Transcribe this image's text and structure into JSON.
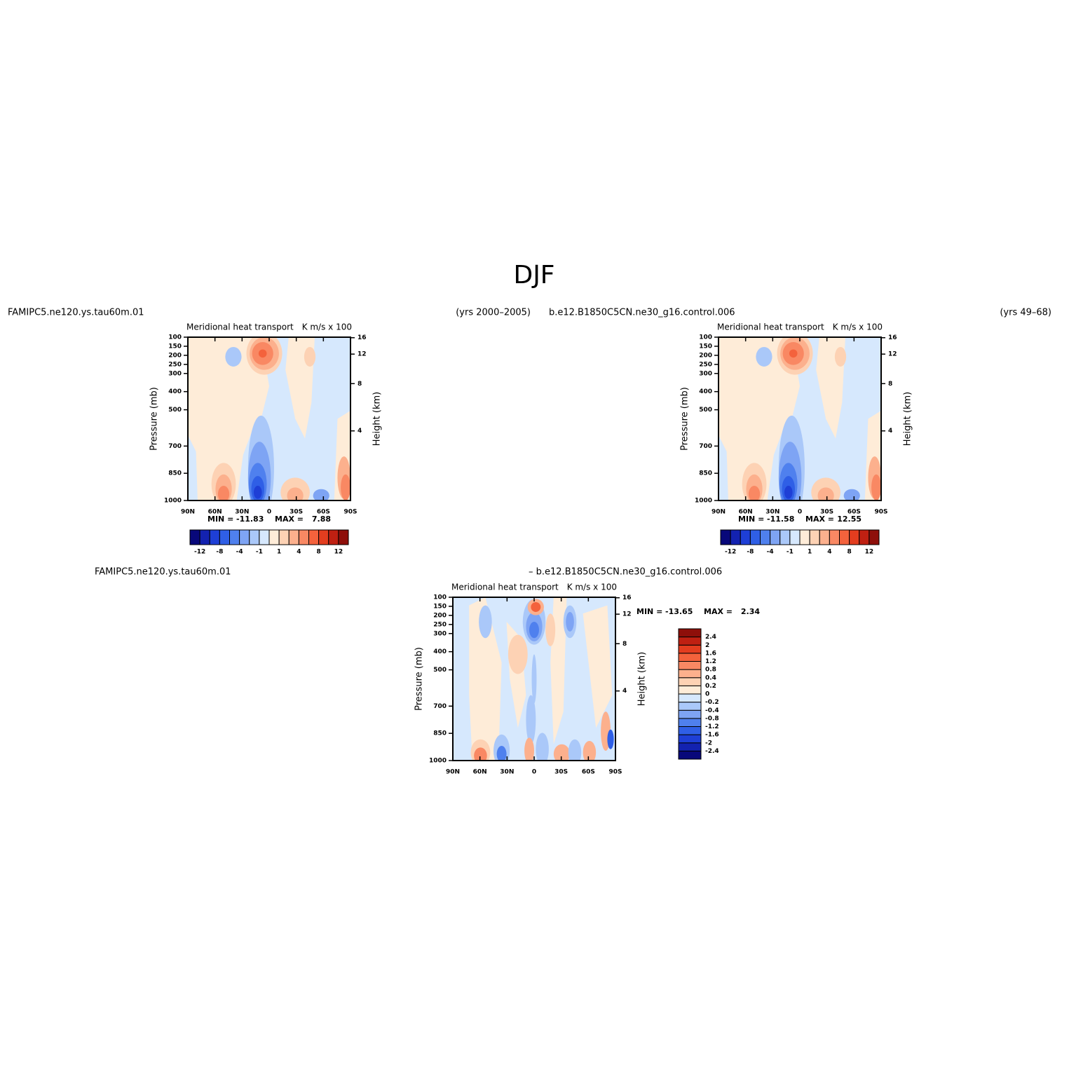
{
  "figure_title": "DJF",
  "chart_data": [
    {
      "type": "contour",
      "left_label": "FAMIPC5.ne120.ys.tau60m.01",
      "right_label": "(yrs 2000–2005)",
      "title": "Meridional heat transport",
      "units": "K m/s x 100",
      "categories": [
        "90N",
        "60N",
        "30N",
        "0",
        "30S",
        "60S",
        "90S"
      ],
      "ylim": [
        1000,
        100
      ],
      "yticks": [
        100,
        150,
        200,
        250,
        300,
        400,
        500,
        700,
        850,
        1000
      ],
      "y2ticks": [
        16,
        12,
        8,
        4
      ],
      "ylabel": "Pressure (mb)",
      "y2label": "Height (km)",
      "min_label": "MIN =",
      "min": -11.83,
      "max_label": "MAX =",
      "max": 7.88,
      "colorbar": {
        "orientation": "horizontal",
        "colors": [
          "#08087a",
          "#1322b0",
          "#1e3fd6",
          "#2f5fe6",
          "#4f80ee",
          "#7ea4f4",
          "#aac8f9",
          "#d6e8fd",
          "#feecd8",
          "#fdd2b4",
          "#fcb08d",
          "#f98863",
          "#f4623c",
          "#e33d1f",
          "#bf2012",
          "#8e0f0a"
        ],
        "ticks": [
          -12,
          -8,
          -4,
          -1,
          1,
          4,
          8,
          12
        ]
      }
    },
    {
      "type": "contour",
      "left_label": "b.e12.B1850C5CN.ne30_g16.control.006",
      "right_label": "(yrs 49–68)",
      "title": "Meridional heat transport",
      "units": "K m/s x 100",
      "categories": [
        "90N",
        "60N",
        "30N",
        "0",
        "30S",
        "60S",
        "90S"
      ],
      "ylim": [
        1000,
        100
      ],
      "yticks": [
        100,
        150,
        200,
        250,
        300,
        400,
        500,
        700,
        850,
        1000
      ],
      "y2ticks": [
        16,
        12,
        8,
        4
      ],
      "ylabel": "Pressure (mb)",
      "y2label": "Height (km)",
      "min_label": "MIN =",
      "min": -11.58,
      "max_label": "MAX =",
      "max": 12.55,
      "colorbar": {
        "orientation": "horizontal",
        "colors": [
          "#08087a",
          "#1322b0",
          "#1e3fd6",
          "#2f5fe6",
          "#4f80ee",
          "#7ea4f4",
          "#aac8f9",
          "#d6e8fd",
          "#feecd8",
          "#fdd2b4",
          "#fcb08d",
          "#f98863",
          "#f4623c",
          "#e33d1f",
          "#bf2012",
          "#8e0f0a"
        ],
        "ticks": [
          -12,
          -8,
          -4,
          -1,
          1,
          4,
          8,
          12
        ]
      }
    },
    {
      "type": "contour",
      "left_label": "FAMIPC5.ne120.ys.tau60m.01",
      "center_label": "– b.e12.B1850C5CN.ne30_g16.control.006",
      "title": "Meridional heat transport",
      "units": "K m/s x 100",
      "categories": [
        "90N",
        "60N",
        "30N",
        "0",
        "30S",
        "60S",
        "90S"
      ],
      "ylim": [
        1000,
        100
      ],
      "yticks": [
        100,
        150,
        200,
        250,
        300,
        400,
        500,
        700,
        850,
        1000
      ],
      "y2ticks": [
        16,
        12,
        8,
        4
      ],
      "ylabel": "Pressure (mb)",
      "y2label": "Height (km)",
      "min_label": "MIN =",
      "min": -13.65,
      "max_label": "MAX =",
      "max": 2.34,
      "colorbar": {
        "orientation": "vertical",
        "colors": [
          "#08087a",
          "#1322b0",
          "#1e3fd6",
          "#2f5fe6",
          "#4f80ee",
          "#7ea4f4",
          "#aac8f9",
          "#d6e8fd",
          "#feecd8",
          "#fdd2b4",
          "#fcb08d",
          "#f98863",
          "#f4623c",
          "#e33d1f",
          "#bf2012",
          "#8e0f0a"
        ],
        "ticks": [
          -2.4,
          -2,
          -1.6,
          -1.2,
          -0.8,
          -0.4,
          -0.2,
          0,
          0.2,
          0.4,
          0.8,
          1.2,
          1.6,
          2,
          2.4
        ]
      }
    }
  ]
}
